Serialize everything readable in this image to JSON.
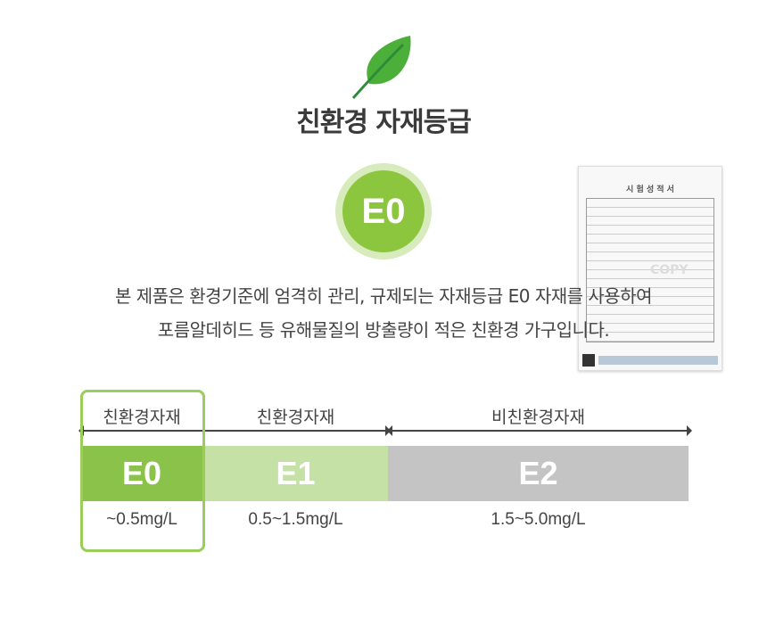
{
  "header": {
    "icon": "leaf-icon",
    "title": "친환경 자재등급",
    "badge": "E0"
  },
  "description": [
    "본 제품은 환경기준에 엄격히 관리, 규제되는 자재등급 E0 자재를 사용하여",
    "포름알데히드 등 유해물질의 방출량이 적은 친환경 가구입니다."
  ],
  "certificate": {
    "title": "시 험 성 적 서",
    "watermark": "COPY"
  },
  "grades": [
    {
      "group": "친환경자재",
      "grade": "E0",
      "range": "~0.5mg/L",
      "color": "#8bc34a"
    },
    {
      "group": "친환경자재",
      "grade": "E1",
      "range": "0.5~1.5mg/L",
      "color": "#c5e1a5"
    },
    {
      "group": "비친환경자재",
      "grade": "E2",
      "range": "1.5~5.0mg/L",
      "color": "#c4c4c4"
    }
  ],
  "colors": {
    "accent": "#8cc63f",
    "highlight_border": "#9acd5a"
  }
}
